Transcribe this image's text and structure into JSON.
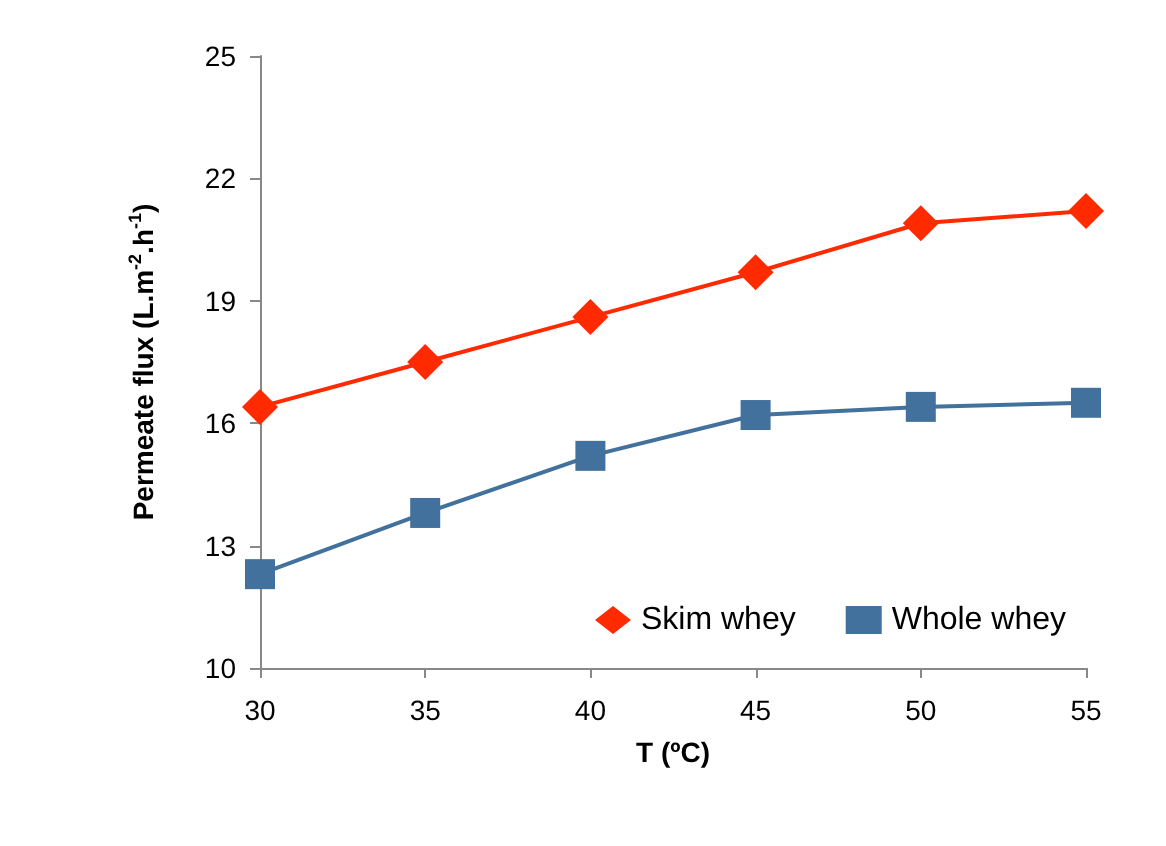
{
  "chart_data": {
    "type": "line",
    "xlabel": "T (ºC)",
    "ylabel": "Permeate flux (L.m$^{-2}$.h$^{-1}$)",
    "x": [
      30,
      35,
      40,
      45,
      50,
      55
    ],
    "series": [
      {
        "name": "Skim whey",
        "color": "#ff2a00",
        "marker": "diamond",
        "values": [
          16.4,
          17.5,
          18.6,
          19.7,
          20.9,
          21.2
        ]
      },
      {
        "name": "Whole whey",
        "color": "#41719c",
        "marker": "square",
        "values": [
          12.3,
          13.8,
          15.2,
          16.2,
          16.4,
          16.5
        ]
      }
    ],
    "xlim": [
      30,
      55
    ],
    "xticks": [
      30,
      35,
      40,
      45,
      50,
      55
    ],
    "ylim": [
      10,
      25
    ],
    "yticks": [
      10,
      13,
      16,
      19,
      22,
      25
    ],
    "grid": false,
    "legend": "bottom right"
  }
}
